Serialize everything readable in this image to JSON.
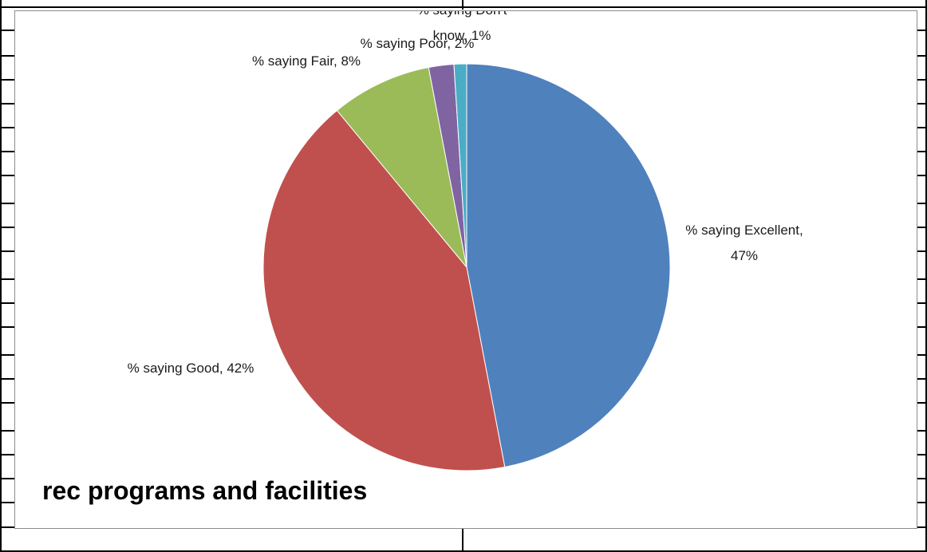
{
  "chart_data": {
    "type": "pie",
    "title": "rec programs and facilities",
    "slices": [
      {
        "label": "% saying Excellent",
        "value": 47,
        "display": "47%",
        "color": "#4F81BD"
      },
      {
        "label": "% saying Good",
        "value": 42,
        "display": "42%",
        "color": "#C0504D"
      },
      {
        "label": "% saying Fair",
        "value": 8,
        "display": "8%",
        "color": "#9BBB59"
      },
      {
        "label": "% saying Poor",
        "value": 2,
        "display": "2%",
        "color": "#8064A2"
      },
      {
        "label": "% saying Don't know",
        "value": 1,
        "display": "1%",
        "color": "#4BACC6"
      }
    ],
    "data_labels": [
      [
        "% saying Excellent,",
        "47%"
      ],
      [
        "% saying Good, 42%"
      ],
      [
        "% saying Fair, 8%"
      ],
      [
        "% saying Poor, 2%"
      ],
      [
        "% saying Don't",
        "know, 1%"
      ]
    ],
    "legend": "none"
  }
}
